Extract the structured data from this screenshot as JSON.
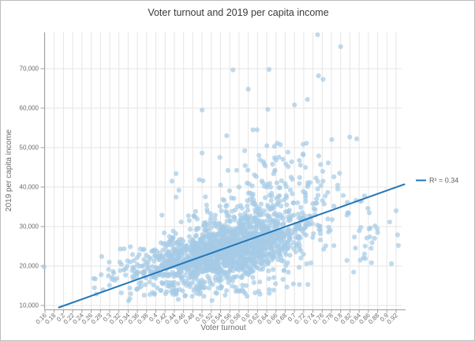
{
  "frame": {
    "background": "#ffffff",
    "border_color": "#bdbdbd"
  },
  "chart_data": {
    "type": "scatter",
    "title": "Voter turnout and 2019 per capita income",
    "xlabel": "Voter turnout",
    "ylabel": "2019 per capita income",
    "xlim": [
      0.16,
      0.92
    ],
    "ylim": [
      9000,
      79200
    ],
    "grid": true,
    "x_ticks": [
      0.16,
      0.18,
      0.2,
      0.22,
      0.24,
      0.26,
      0.28,
      0.3,
      0.32,
      0.34,
      0.36,
      0.38,
      0.4,
      0.42,
      0.44,
      0.46,
      0.48,
      0.5,
      0.52,
      0.54,
      0.56,
      0.58,
      0.6,
      0.62,
      0.64,
      0.66,
      0.68,
      0.7,
      0.72,
      0.74,
      0.76,
      0.78,
      0.8,
      0.82,
      0.84,
      0.86,
      0.88,
      0.9,
      0.92
    ],
    "x_tick_labels": [
      "0.16",
      "0.18",
      "0.2",
      "0.22",
      "0.24",
      "0.26",
      "0.28",
      "0.3",
      "0.32",
      "0.34",
      "0.36",
      "0.38",
      "0.4",
      "0.42",
      "0.44",
      "0.46",
      "0.48",
      "0.5",
      "0.52",
      "0.54",
      "0.56",
      "0.58",
      "0.6",
      "0.62",
      "0.64",
      "0.66",
      "0.68",
      "0.7",
      "0.72",
      "0.74",
      "0.76",
      "0.78",
      "0.8",
      "0.82",
      "0.84",
      "0.86",
      "0.88",
      "0.9",
      "0.92"
    ],
    "y_ticks": [
      10000,
      20000,
      30000,
      40000,
      50000,
      60000,
      70000
    ],
    "y_tick_labels": [
      "10,000",
      "20,000",
      "30,000",
      "40,000",
      "50,000",
      "60,000",
      "70,000"
    ],
    "legend": {
      "label": "R² = 0.34",
      "position": "right"
    },
    "trendline": {
      "x1": 0.19,
      "y1": 9500,
      "x2": 0.938,
      "y2": 40700,
      "r_squared": 0.34,
      "color": "#2477b8",
      "width": 2
    },
    "point_style": {
      "radius": 3.1,
      "color": "#a5cbe5",
      "opacity": 0.7
    },
    "colors": {
      "grid": "#e5e5e5",
      "axis_line": "#9e9e9e",
      "title_text": "#3a3a3a",
      "axis_text": "#6b6b6b",
      "point": "#a5cbe5",
      "trend": "#2477b8"
    },
    "scatter": {
      "n_points": 1986,
      "seed": 11,
      "clusters": [
        {
          "n": 1430,
          "cx": 0.545,
          "sx": 0.083,
          "xr": [
            0.27,
            0.84
          ],
          "cy": 23400,
          "slope": 23000,
          "sy": 3500,
          "yr": [
            12800,
            36500
          ]
        },
        {
          "n": 300,
          "cx": 0.61,
          "sx": 0.085,
          "xr": [
            0.34,
            0.87
          ],
          "cy": 30800,
          "slope": 26000,
          "sy": 4300,
          "yr": [
            24500,
            47500
          ]
        },
        {
          "n": 90,
          "cx": 0.66,
          "sx": 0.075,
          "xr": [
            0.43,
            0.86
          ],
          "cy": 44000,
          "slope": 30000,
          "sy": 5500,
          "yr": [
            36500,
            62500
          ]
        },
        {
          "n": 60,
          "cx": 0.36,
          "sx": 0.05,
          "xr": [
            0.2,
            0.46
          ],
          "cy": 18800,
          "slope": 14000,
          "sy": 2700,
          "yr": [
            13200,
            26500
          ]
        },
        {
          "n": 60,
          "cx": 0.53,
          "sx": 0.1,
          "xr": [
            0.31,
            0.79
          ],
          "cy": 13600,
          "slope": 4000,
          "sy": 1300,
          "yr": [
            10800,
            16000
          ]
        },
        {
          "n": 28,
          "cx": 0.85,
          "sx": 0.04,
          "xr": [
            0.79,
            0.927
          ],
          "cy": 27500,
          "slope": 0,
          "sy": 5800,
          "yr": [
            14000,
            43000
          ]
        }
      ],
      "outliers": [
        [
          0.158,
          19800
        ],
        [
          0.75,
          78600
        ],
        [
          0.8,
          75600
        ],
        [
          0.567,
          69700
        ],
        [
          0.645,
          69800
        ],
        [
          0.752,
          68200
        ],
        [
          0.762,
          67300
        ],
        [
          0.6,
          64800
        ],
        [
          0.728,
          62200
        ],
        [
          0.7,
          60800
        ],
        [
          0.5,
          59500
        ],
        [
          0.61,
          54500
        ],
        [
          0.925,
          25200
        ],
        [
          0.91,
          20600
        ],
        [
          0.88,
          28500
        ],
        [
          0.862,
          33500
        ],
        [
          0.845,
          36500
        ],
        [
          0.435,
          41500
        ]
      ]
    }
  }
}
